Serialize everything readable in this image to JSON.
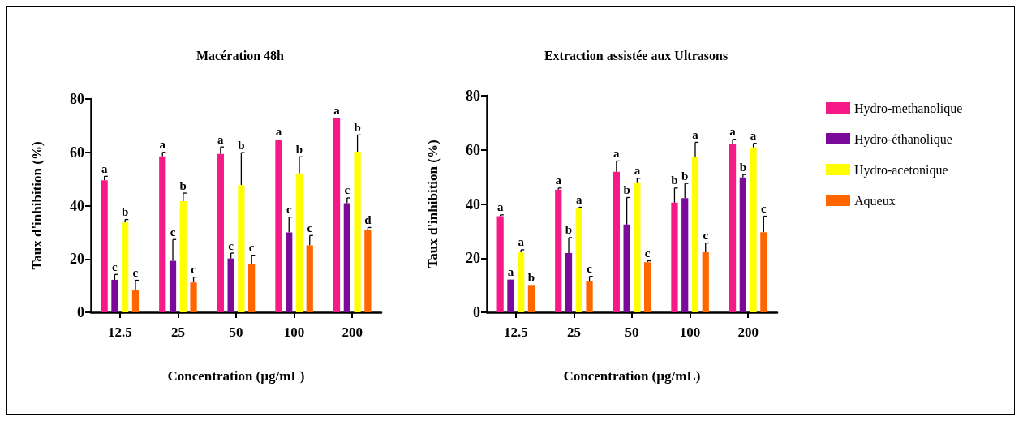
{
  "chart_data": [
    {
      "type": "bar",
      "title": "Macération 48h",
      "xlabel": "Concentration (µg/mL)",
      "ylabel": "Taux d'inhibition (%)",
      "categories": [
        "12.5",
        "25",
        "50",
        "100",
        "200"
      ],
      "ylim": [
        0,
        80
      ],
      "yticks": [
        0,
        20,
        40,
        60,
        80
      ],
      "grid": false,
      "legend": false,
      "series": [
        {
          "color": "#f51a85",
          "values": [
            49.5,
            58.5,
            59.4,
            64.8,
            73
          ],
          "errors": [
            1.5,
            1.5,
            2.6,
            null,
            null
          ],
          "value_labels": [
            "a",
            "a",
            "a",
            "a",
            "a"
          ]
        },
        {
          "color": "#7a0a99",
          "values": [
            12.2,
            19.3,
            20.2,
            30,
            40.9
          ],
          "errors": [
            2,
            8,
            2,
            5.7,
            2
          ],
          "value_labels": [
            "c",
            "c",
            "c",
            "c",
            "c"
          ]
        },
        {
          "color": "#ffff00",
          "values": [
            33.7,
            41.7,
            47.7,
            52.1,
            60.2
          ],
          "errors": [
            1.1,
            3,
            12.2,
            6.2,
            6.3
          ],
          "value_labels": [
            "b",
            "b",
            "b",
            "b",
            "b"
          ]
        },
        {
          "color": "#ff6600",
          "values": [
            8.2,
            11.2,
            18.1,
            25.1,
            31
          ],
          "errors": [
            3.8,
            2,
            3.3,
            3.7,
            0.8
          ],
          "value_labels": [
            "c",
            "c",
            "c",
            "c",
            "d"
          ]
        }
      ]
    },
    {
      "type": "bar",
      "title": "Extraction assistée aux Ultrasons",
      "xlabel": "Concentration (µg/mL)",
      "ylabel": "Taux d'inhibition (%)",
      "categories": [
        "12.5",
        "25",
        "50",
        "100",
        "200"
      ],
      "ylim": [
        0,
        80
      ],
      "yticks": [
        0,
        20,
        40,
        60,
        80
      ],
      "grid": false,
      "legend": "right",
      "series": [
        {
          "name": "Hydro-methanolique",
          "color": "#f51a85",
          "values": [
            35.5,
            45.3,
            51.9,
            40.5,
            62.2
          ],
          "errors": [
            0.5,
            0.6,
            4,
            5.4,
            1.7
          ],
          "value_labels": [
            "a",
            "a",
            "a",
            "b",
            "a"
          ]
        },
        {
          "name": "Hydro-éthanolique",
          "color": "#7a0a99",
          "values": [
            12.1,
            21.9,
            32.4,
            42.2,
            49.8
          ],
          "errors": [
            null,
            5.7,
            10,
            5.4,
            1.1
          ],
          "value_labels": [
            "a",
            "b",
            "b",
            "b",
            "b"
          ]
        },
        {
          "name": "Hydro-acetonique",
          "color": "#ffff00",
          "values": [
            22.1,
            38.3,
            48,
            57.4,
            60.9
          ],
          "errors": [
            1,
            0.5,
            1.5,
            5.4,
            1.5
          ],
          "value_labels": [
            "a",
            "a",
            "a",
            "a",
            "a"
          ]
        },
        {
          "name": "Aqueux",
          "color": "#ff6600",
          "values": [
            10.1,
            11.5,
            18.5,
            22.2,
            29.6
          ],
          "errors": [
            null,
            1.8,
            0.5,
            3.4,
            5.9
          ],
          "value_labels": [
            "b",
            "c",
            "c",
            "c",
            "c"
          ]
        }
      ]
    }
  ]
}
